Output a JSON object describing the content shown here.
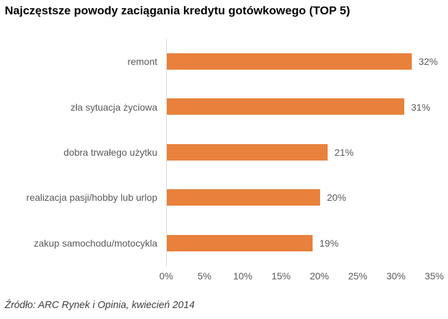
{
  "chart_data": {
    "type": "bar",
    "orientation": "horizontal",
    "title": "Najczęstsze powody zaciągania kredytu gotówkowego (TOP 5)",
    "categories": [
      "remont",
      "zła sytuacja życiowa",
      "dobra trwałego użytku",
      "realizacja pasji/hobby lub urlop",
      "zakup samochodu/motocykla"
    ],
    "values": [
      32,
      31,
      21,
      20,
      19
    ],
    "value_labels": [
      "32%",
      "31%",
      "21%",
      "20%",
      "19%"
    ],
    "x_ticks": [
      "0%",
      "5%",
      "10%",
      "15%",
      "20%",
      "25%",
      "30%",
      "35%"
    ],
    "xlim": [
      0,
      35
    ],
    "xlabel": "",
    "ylabel": "",
    "grid": false,
    "legend": false,
    "bar_color": "#e8813c",
    "label_color": "#595959",
    "axis_line_color": "#d9d9d9",
    "source_note": "Źródło: ARC Rynek i Opinia, kwiecień 2014"
  }
}
